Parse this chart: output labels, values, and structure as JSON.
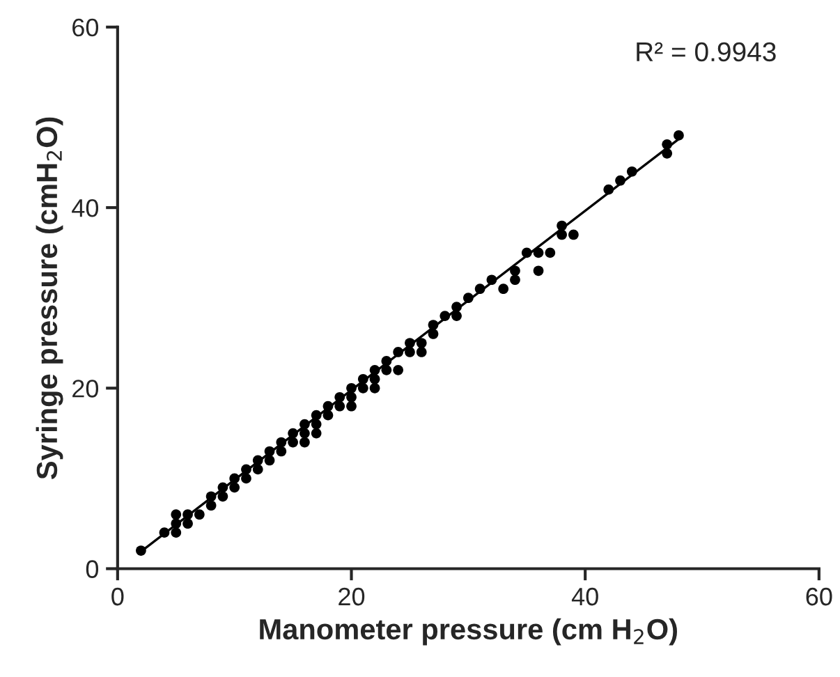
{
  "chart_data": {
    "type": "scatter",
    "xlabel": "Manometer pressure (cm H$_{2}$O)",
    "ylabel": "Syringe pressure (cmH$_{2}$O)",
    "annotations": [
      "R² = 0.9943"
    ],
    "xlim": [
      0,
      60
    ],
    "ylim": [
      0,
      60
    ],
    "xticks": [
      0,
      20,
      40,
      60
    ],
    "yticks": [
      0,
      20,
      40,
      60
    ],
    "grid": false,
    "legend": false,
    "series": [
      {
        "color": "#000000",
        "marker": "circle",
        "x": [
          2,
          4,
          5,
          5,
          5,
          6,
          6,
          7,
          8,
          8,
          9,
          9,
          10,
          10,
          11,
          11,
          12,
          12,
          13,
          13,
          14,
          14,
          15,
          15,
          16,
          16,
          16,
          17,
          17,
          17,
          18,
          18,
          19,
          19,
          20,
          20,
          20,
          21,
          21,
          22,
          22,
          22,
          23,
          23,
          24,
          24,
          25,
          25,
          26,
          26,
          27,
          27,
          28,
          29,
          29,
          30,
          31,
          32,
          33,
          34,
          34,
          35,
          36,
          36,
          37,
          38,
          38,
          39,
          42,
          43,
          44,
          47,
          47,
          48
        ],
        "values": [
          2,
          4,
          4,
          5,
          6,
          5,
          6,
          6,
          7,
          8,
          8,
          9,
          9,
          10,
          10,
          11,
          11,
          12,
          12,
          13,
          13,
          14,
          14,
          15,
          14,
          15,
          16,
          15,
          16,
          17,
          17,
          18,
          18,
          19,
          18,
          19,
          20,
          20,
          21,
          20,
          21,
          22,
          22,
          23,
          22,
          24,
          24,
          25,
          24,
          25,
          26,
          27,
          28,
          28,
          29,
          30,
          31,
          32,
          31,
          32,
          33,
          35,
          33,
          35,
          35,
          37,
          38,
          37,
          42,
          43,
          44,
          46,
          47,
          48
        ]
      },
      {
        "type": "line",
        "color": "#000000",
        "line_style": "solid",
        "x": [
          2,
          48
        ],
        "values": [
          1.9,
          47.6
        ]
      }
    ]
  }
}
